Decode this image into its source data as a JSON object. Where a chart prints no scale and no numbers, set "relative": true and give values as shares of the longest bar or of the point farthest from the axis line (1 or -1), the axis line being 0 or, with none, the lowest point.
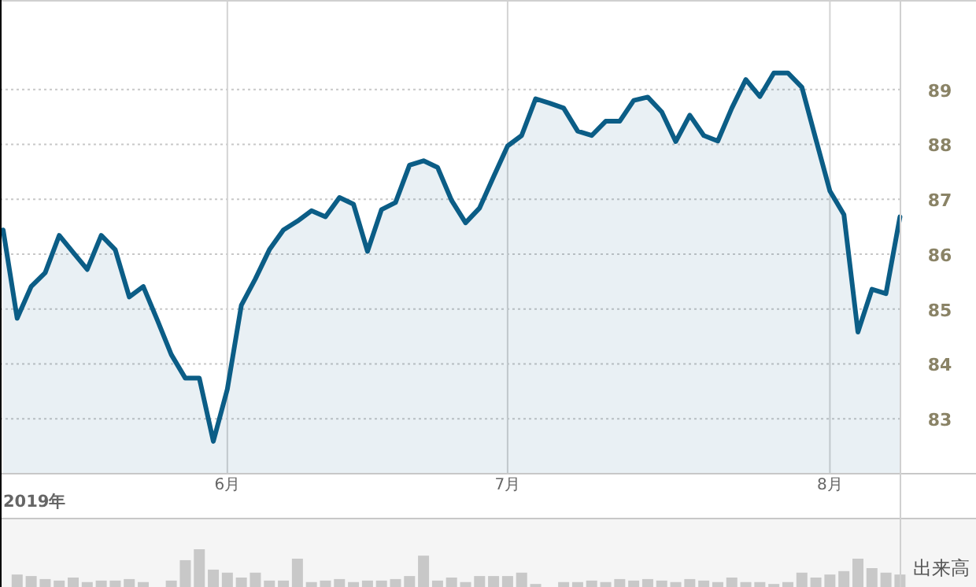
{
  "chart_data": [
    {
      "type": "area",
      "xlabel": "2019年",
      "categories": [
        null,
        null,
        null,
        null,
        null,
        null,
        null,
        null,
        null,
        null,
        null,
        null,
        null,
        null,
        null,
        null,
        "6月",
        null,
        null,
        null,
        null,
        null,
        null,
        null,
        null,
        null,
        null,
        null,
        null,
        null,
        null,
        null,
        null,
        null,
        null,
        null,
        "7月",
        null,
        null,
        null,
        null,
        null,
        null,
        null,
        null,
        null,
        null,
        null,
        null,
        null,
        null,
        null,
        null,
        null,
        null,
        null,
        null,
        null,
        null,
        "8月",
        null,
        null,
        null,
        null,
        null
      ],
      "series": [
        {
          "color": "#0b5d86",
          "values": [
            86.44,
            84.83,
            85.41,
            85.66,
            86.34,
            86.03,
            85.72,
            86.34,
            86.08,
            85.22,
            85.41,
            84.8,
            84.17,
            83.74,
            83.74,
            82.59,
            83.54,
            85.07,
            85.55,
            86.08,
            86.44,
            86.6,
            86.79,
            86.68,
            87.03,
            86.91,
            86.05,
            86.81,
            86.94,
            87.62,
            87.7,
            87.58,
            86.98,
            86.57,
            86.84,
            87.41,
            87.97,
            88.16,
            88.83,
            88.75,
            88.66,
            88.24,
            88.16,
            88.42,
            88.42,
            88.8,
            88.86,
            88.59,
            88.05,
            88.53,
            88.16,
            88.06,
            88.66,
            89.18,
            88.87,
            89.3,
            89.3,
            89.04,
            88.09,
            87.15,
            86.72,
            84.58,
            85.36,
            85.28,
            86.68
          ]
        }
      ],
      "ylim": [
        82,
        90.6
      ],
      "yticks": [
        83,
        84,
        85,
        86,
        87,
        88,
        89
      ],
      "grid": true
    },
    {
      "type": "bar",
      "relative": true,
      "ylabel": "出来高",
      "categories": [
        null,
        null,
        null,
        null,
        null,
        null,
        null,
        null,
        null,
        null,
        null,
        null,
        null,
        null,
        null,
        null,
        null,
        null,
        null,
        null,
        null,
        null,
        null,
        null,
        null,
        null,
        null,
        null,
        null,
        null,
        null,
        null,
        null,
        null,
        null,
        null,
        null,
        null,
        null,
        null,
        null,
        null,
        null,
        null,
        null,
        null,
        null,
        null,
        null,
        null,
        null,
        null,
        null,
        null,
        null,
        null,
        null,
        null,
        null,
        null,
        null,
        null,
        null,
        null,
        null
      ],
      "series": [
        {
          "color": "#c8c8c8",
          "values": [
            null,
            0.33,
            0.29,
            0.21,
            0.17,
            0.25,
            0.13,
            0.17,
            0.17,
            0.21,
            0.13,
            0,
            0.17,
            0.71,
            1,
            0.46,
            0.38,
            0.25,
            0.38,
            0.17,
            0.17,
            0.75,
            0.13,
            0.17,
            0.21,
            0.13,
            0.17,
            0.17,
            0.21,
            0.29,
            0.83,
            0.17,
            0.25,
            0.13,
            0.29,
            0.29,
            0.29,
            0.38,
            0.08,
            0,
            0.13,
            0.13,
            0.17,
            0.13,
            0.21,
            0.17,
            0.21,
            0.17,
            0.13,
            0.21,
            0.17,
            0.13,
            0.25,
            0.13,
            0.13,
            0.08,
            0.13,
            0.38,
            0.25,
            0.33,
            0.42,
            0.75,
            0.5,
            0.38,
            0.33
          ]
        }
      ]
    }
  ]
}
